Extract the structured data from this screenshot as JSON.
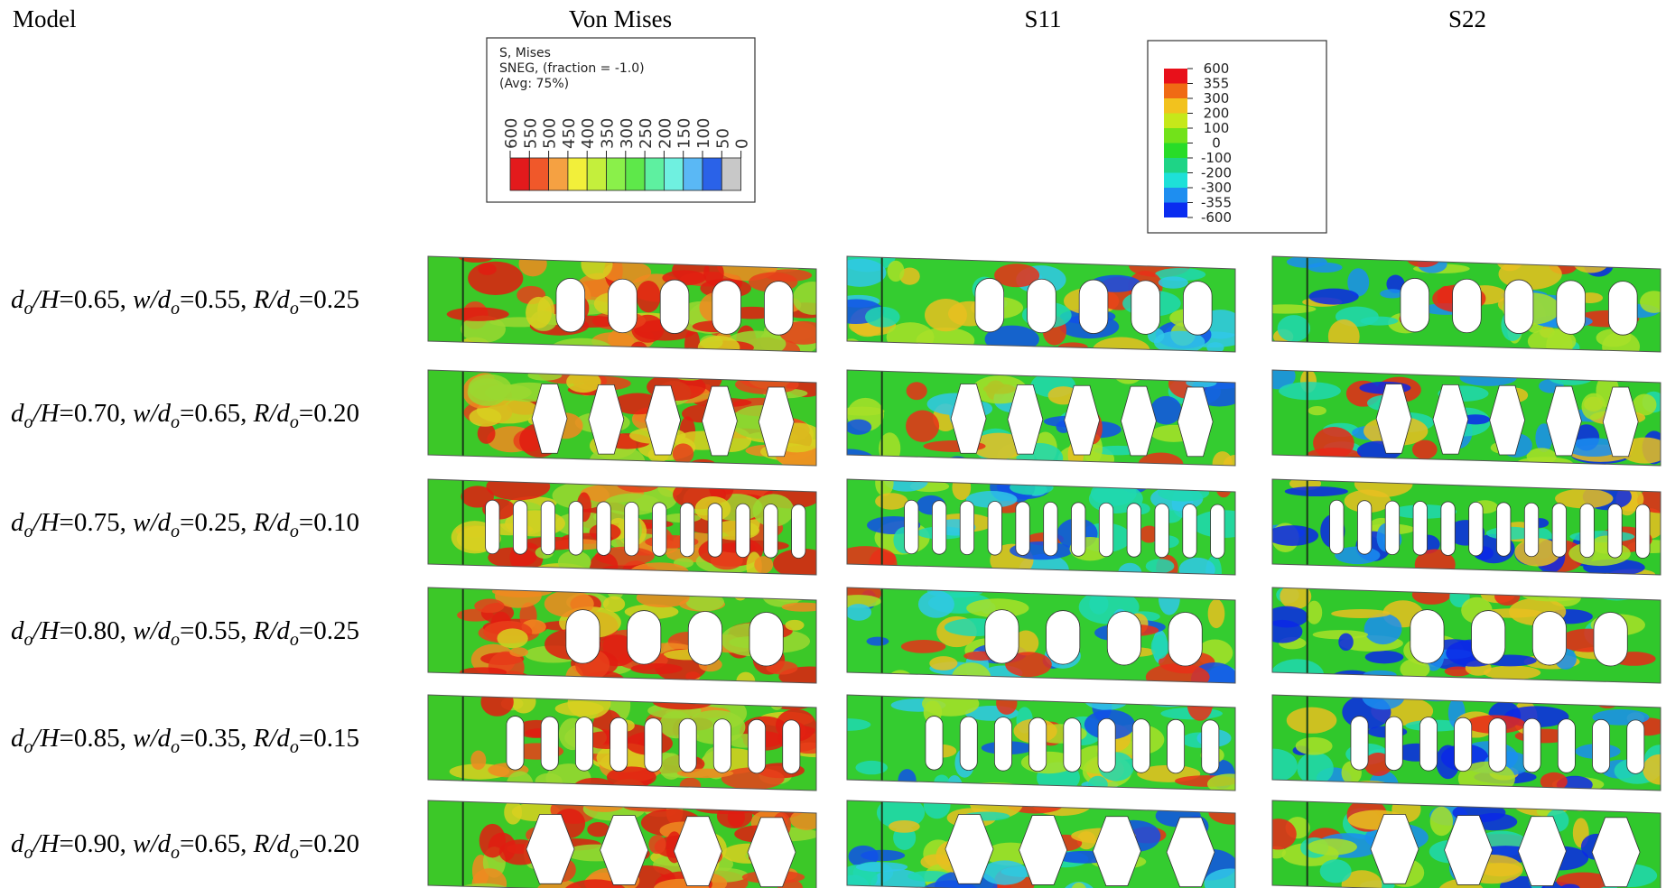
{
  "headers": [
    "Model",
    "Von Mises",
    "S11",
    "S22"
  ],
  "mises_legend": {
    "lines": [
      "S, Mises",
      "SNEG, (fraction = -1.0)",
      "(Avg: 75%)"
    ],
    "ticks": [
      "600",
      "550",
      "500",
      "450",
      "400",
      "350",
      "300",
      "250",
      "200",
      "150",
      "100",
      "50",
      "0"
    ],
    "colors": [
      "#e31a1c",
      "#f0582a",
      "#f5a142",
      "#f2ef3a",
      "#c4ef3c",
      "#8af04a",
      "#5ee84a",
      "#5ef0a0",
      "#6ff0e0",
      "#5ab8f5",
      "#2a62e8",
      "#c8c8c8"
    ]
  },
  "s_legend": {
    "ticks": [
      "600",
      "355",
      "300",
      "200",
      "100",
      "0",
      "-100",
      "-200",
      "-300",
      "-355",
      "-600"
    ],
    "colors": [
      "#e8101a",
      "#f06a14",
      "#f2c21e",
      "#c6e81a",
      "#72e21a",
      "#28dc28",
      "#1ed486",
      "#1ee0d8",
      "#1e8ef0",
      "#0a2cf0"
    ]
  },
  "parameters": [
    {
      "pre": "d",
      "sub": "o",
      "post": "/H"
    },
    {
      "pre": "w/d",
      "sub": "o",
      "post": ""
    },
    {
      "pre": "R/d",
      "sub": "o",
      "post": ""
    }
  ],
  "equals": "=",
  "separator": ", ",
  "rows": [
    [
      "0.65",
      "0.55",
      "0.25"
    ],
    [
      "0.70",
      "0.65",
      "0.20"
    ],
    [
      "0.75",
      "0.25",
      "0.10"
    ],
    [
      "0.80",
      "0.55",
      "0.25"
    ],
    [
      "0.85",
      "0.35",
      "0.15"
    ],
    [
      "0.90",
      "0.65",
      "0.20"
    ]
  ]
}
